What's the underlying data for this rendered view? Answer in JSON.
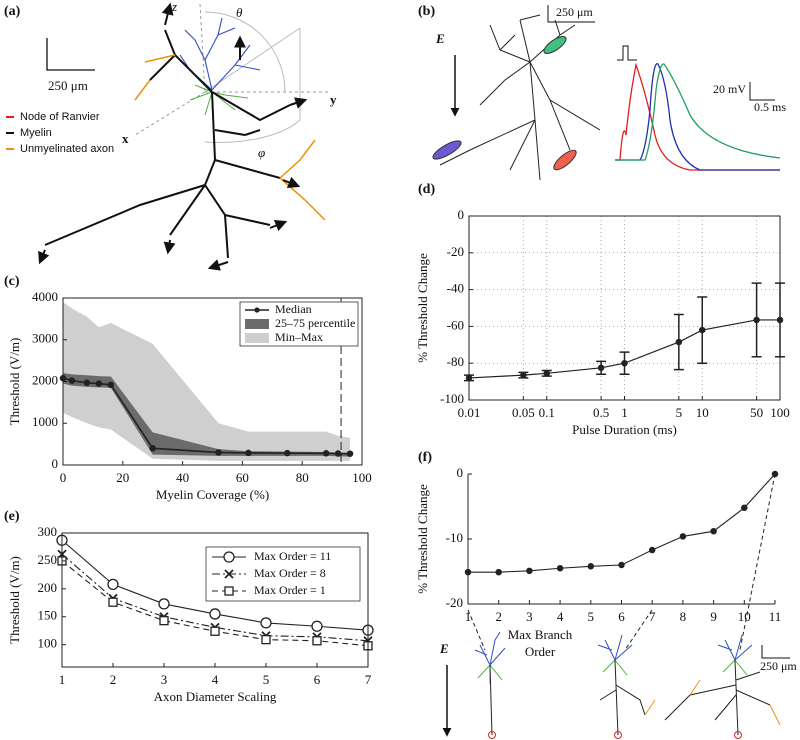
{
  "diagram_a": {
    "panel": "(a)",
    "scale": "250 μm",
    "z": "z",
    "theta": "θ",
    "y": "y",
    "x": "x",
    "phi": "φ",
    "legend": [
      {
        "label": "Node of Ranvier",
        "color": "#e02020"
      },
      {
        "label": "Myelin",
        "color": "#111111"
      },
      {
        "label": "Unmyelinated axon",
        "color": "#f0900a"
      }
    ]
  },
  "diagram_b": {
    "panel": "(b)",
    "field": "E",
    "scale": "250 μm",
    "voltage_scale": "20 mV",
    "time_scale": "0.5 ms"
  },
  "diagram_f": {
    "field": "E",
    "scale": "250 μm"
  },
  "chart_data": [
    {
      "type": "area",
      "panel": "(c)",
      "xlabel": "Myelin Coverage (%)",
      "ylabel": "Threshold (V/m)",
      "xlim": [
        0,
        100
      ],
      "xticks": [
        0,
        20,
        40,
        60,
        80,
        100
      ],
      "ylim": [
        0,
        4000
      ],
      "yticks": [
        0,
        1000,
        2000,
        3000,
        4000
      ],
      "x": [
        0,
        3,
        8,
        12,
        16,
        30,
        52,
        62,
        75,
        88,
        92,
        96
      ],
      "series": [
        {
          "name": "Median",
          "color": "#222222",
          "values": [
            2080,
            2020,
            1970,
            1950,
            1920,
            400,
            300,
            290,
            285,
            280,
            275,
            270
          ]
        },
        {
          "name": "25–75 percentile",
          "color": "#6b6b6b",
          "low": [
            1950,
            1900,
            1870,
            1860,
            1850,
            250,
            220,
            220,
            220,
            220,
            210,
            200
          ],
          "high": [
            2200,
            2170,
            2150,
            2130,
            2120,
            780,
            380,
            330,
            320,
            310,
            300,
            290
          ]
        },
        {
          "name": "Min–Max",
          "color": "#cfcfcf",
          "low": [
            1250,
            1150,
            1000,
            900,
            850,
            150,
            100,
            100,
            100,
            100,
            100,
            100
          ],
          "high": [
            3900,
            3750,
            3550,
            3300,
            3400,
            2900,
            1000,
            800,
            800,
            800,
            700,
            650
          ]
        }
      ],
      "vline": 93,
      "legend": "upper right"
    },
    {
      "type": "errorbar",
      "panel": "(d)",
      "xlabel": "Pulse Duration (ms)",
      "ylabel": "% Threshold Change",
      "xlog": true,
      "grid": true,
      "xlim": [
        0.01,
        100
      ],
      "xticks": [
        0.01,
        0.05,
        0.1,
        0.5,
        1,
        5,
        10,
        50,
        100
      ],
      "ylim": [
        -100,
        0
      ],
      "yticks": [
        -100,
        -80,
        -60,
        -40,
        -20,
        0
      ],
      "x": [
        0.01,
        0.05,
        0.1,
        0.5,
        1,
        5,
        10,
        50,
        100
      ],
      "values": [
        -88,
        -86.5,
        -85.5,
        -82.5,
        -80,
        -68.5,
        -62,
        -56.5,
        -56.5
      ],
      "errors": [
        1.5,
        1.5,
        1.5,
        3.5,
        6,
        15,
        18,
        20,
        20
      ],
      "color": "#222222"
    },
    {
      "type": "line",
      "panel": "(e)",
      "xlabel": "Axon Diameter Scaling",
      "ylabel": "Threshold (V/m)",
      "xlim": [
        1,
        7
      ],
      "xticks": [
        1,
        2,
        3,
        4,
        5,
        6,
        7
      ],
      "ylim": [
        60,
        300
      ],
      "yticks": [
        100,
        150,
        200,
        250,
        300
      ],
      "x": [
        1,
        2,
        3,
        4,
        5,
        6,
        7
      ],
      "legend": "upper right",
      "series": [
        {
          "name": "Max Order = 11",
          "color": "#222222",
          "marker": "circle",
          "dash": "solid",
          "values": [
            287,
            208,
            173,
            155,
            139,
            133,
            126
          ]
        },
        {
          "name": "Max Order = 8",
          "color": "#222222",
          "marker": "x",
          "dash": "dashdot",
          "values": [
            262,
            183,
            150,
            131,
            116,
            114,
            107
          ]
        },
        {
          "name": "Max Order = 1",
          "color": "#222222",
          "marker": "square",
          "dash": "dashed",
          "values": [
            250,
            176,
            143,
            124,
            109,
            107,
            98
          ]
        }
      ]
    },
    {
      "type": "line",
      "panel": "(f)",
      "xlabel": [
        "Max Branch",
        "Order"
      ],
      "ylabel": "% Threshold Change",
      "box": false,
      "xlim": [
        1,
        11
      ],
      "xticks": [
        1,
        2,
        3,
        4,
        5,
        6,
        7,
        8,
        9,
        10,
        11
      ],
      "ylim": [
        -20,
        0
      ],
      "yticks": [
        -20,
        -10,
        0
      ],
      "x": [
        1,
        2,
        3,
        4,
        5,
        6,
        7,
        8,
        9,
        10,
        11
      ],
      "series": [
        {
          "name": null,
          "color": "#222222",
          "marker": "dot",
          "dash": "solid",
          "values": [
            -15.1,
            -15.1,
            -14.9,
            -14.5,
            -14.2,
            -14,
            -11.7,
            -9.6,
            -8.8,
            -5.2,
            0
          ]
        }
      ]
    }
  ]
}
